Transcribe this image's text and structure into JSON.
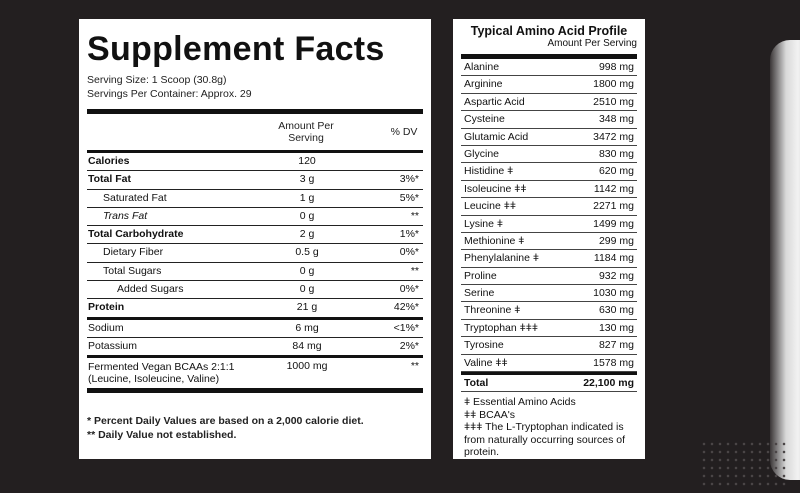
{
  "supplement_facts": {
    "title": "Supplement Facts",
    "serving_size": "Serving Size: 1 Scoop (30.8g)",
    "servings_per_container": "Servings Per Container: Approx. 29",
    "header_amount": "Amount Per Serving",
    "header_dv": "% DV",
    "rows": [
      {
        "name": "Calories",
        "amount": "120",
        "dv": ""
      },
      {
        "name": "Total Fat",
        "amount": "3 g",
        "dv": "3%*"
      },
      {
        "name": "Saturated Fat",
        "amount": "1 g",
        "dv": "5%*"
      },
      {
        "name": "Trans Fat",
        "amount": "0 g",
        "dv": "**"
      },
      {
        "name": "Total Carbohydrate",
        "amount": "2 g",
        "dv": "1%*"
      },
      {
        "name": "Dietary Fiber",
        "amount": "0.5 g",
        "dv": "0%*"
      },
      {
        "name": "Total Sugars",
        "amount": "0 g",
        "dv": "**"
      },
      {
        "name": "Added Sugars",
        "amount": "0 g",
        "dv": "0%*"
      },
      {
        "name": "Protein",
        "amount": "21 g",
        "dv": "42%*"
      },
      {
        "name": "Sodium",
        "amount": "6 mg",
        "dv": "<1%*"
      },
      {
        "name": "Potassium",
        "amount": "84 mg",
        "dv": "2%*"
      },
      {
        "name": "Fermented Vegan BCAAs 2:1:1 (Leucine, Isoleucine, Valine)",
        "amount": "1000 mg",
        "dv": "**"
      }
    ],
    "footnote_1": "* Percent Daily Values are based on a 2,000 calorie diet.",
    "footnote_2": "** Daily Value not established."
  },
  "amino_profile": {
    "title": "Typical Amino Acid Profile",
    "subtitle": "Amount Per Serving",
    "rows": [
      {
        "name": "Alanine",
        "value": "998 mg"
      },
      {
        "name": "Arginine",
        "value": "1800 mg"
      },
      {
        "name": "Aspartic Acid",
        "value": "2510 mg"
      },
      {
        "name": "Cysteine",
        "value": "348 mg"
      },
      {
        "name": "Glutamic Acid",
        "value": "3472 mg"
      },
      {
        "name": "Glycine",
        "value": "830 mg"
      },
      {
        "name": "Histidine ǂ",
        "value": "620 mg"
      },
      {
        "name": "Isoleucine ǂǂ",
        "value": "1142 mg"
      },
      {
        "name": "Leucine ǂǂ",
        "value": "2271 mg"
      },
      {
        "name": "Lysine ǂ",
        "value": "1499 mg"
      },
      {
        "name": "Methionine ǂ",
        "value": "299 mg"
      },
      {
        "name": "Phenylalanine ǂ",
        "value": "1184 mg"
      },
      {
        "name": "Proline",
        "value": "932 mg"
      },
      {
        "name": "Serine",
        "value": "1030 mg"
      },
      {
        "name": "Threonine ǂ",
        "value": "630 mg"
      },
      {
        "name": "Tryptophan ǂǂǂ",
        "value": "130 mg"
      },
      {
        "name": "Tyrosine",
        "value": "827 mg"
      },
      {
        "name": "Valine ǂǂ",
        "value": "1578 mg"
      }
    ],
    "total_label": "Total",
    "total_value": "22,100 mg",
    "note_1": "ǂ Essential Amino Acids",
    "note_2": "ǂǂ BCAA's",
    "note_3": "ǂǂǂ The L-Tryptophan indicated is from naturally occurring sources of protein."
  }
}
